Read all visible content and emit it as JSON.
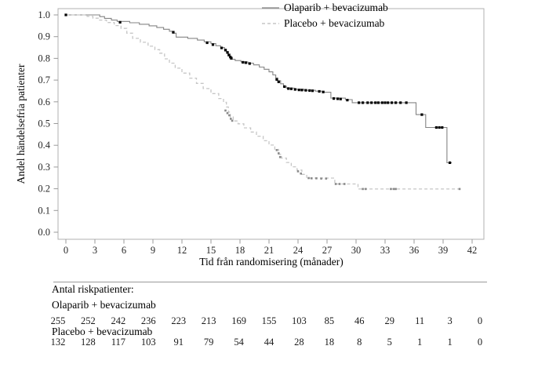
{
  "chart_data": {
    "type": "line",
    "subtype": "kaplan-meier-step",
    "title": "",
    "xlabel": "Tid från randomisering (månader)",
    "ylabel": "Andel händelsefria patienter",
    "xlim": [
      0,
      42
    ],
    "ylim": [
      0.0,
      1.0
    ],
    "x_ticks": [
      0,
      3,
      6,
      9,
      12,
      15,
      18,
      21,
      24,
      27,
      30,
      33,
      36,
      39,
      42
    ],
    "y_ticks": [
      0.0,
      0.1,
      0.2,
      0.3,
      0.4,
      0.5,
      0.6,
      0.7,
      0.8,
      0.9,
      1.0
    ],
    "grid": false,
    "legend_position": "top-center",
    "colors": {
      "olaparib_line": "#848484",
      "olaparib_censor": "#000000",
      "placebo_line": "#c6c6c6",
      "placebo_censor": "#8a8a8a",
      "axis_border": "#b2b2b2",
      "tick_mark": "#9a9a9a",
      "rule_line": "#9a9a9a"
    },
    "series": [
      {
        "name": "Olaparib + bevacizumab",
        "style": "solid",
        "steps": [
          [
            0,
            1.0
          ],
          [
            3.5,
            0.992
          ],
          [
            4.0,
            0.984
          ],
          [
            4.7,
            0.976
          ],
          [
            5.3,
            0.97
          ],
          [
            6.6,
            0.964
          ],
          [
            7.6,
            0.957
          ],
          [
            8.6,
            0.95
          ],
          [
            9.4,
            0.942
          ],
          [
            10.1,
            0.934
          ],
          [
            10.7,
            0.925
          ],
          [
            11.2,
            0.916
          ],
          [
            11.4,
            0.898
          ],
          [
            12.6,
            0.892
          ],
          [
            13.6,
            0.884
          ],
          [
            14.3,
            0.876
          ],
          [
            15.0,
            0.868
          ],
          [
            15.5,
            0.858
          ],
          [
            16.0,
            0.85
          ],
          [
            16.4,
            0.842
          ],
          [
            16.6,
            0.832
          ],
          [
            16.8,
            0.82
          ],
          [
            17.0,
            0.806
          ],
          [
            17.2,
            0.796
          ],
          [
            17.5,
            0.79
          ],
          [
            18.1,
            0.784
          ],
          [
            18.8,
            0.778
          ],
          [
            19.4,
            0.77
          ],
          [
            20.0,
            0.76
          ],
          [
            20.5,
            0.75
          ],
          [
            21.0,
            0.738
          ],
          [
            21.4,
            0.724
          ],
          [
            21.7,
            0.71
          ],
          [
            21.9,
            0.697
          ],
          [
            22.2,
            0.683
          ],
          [
            22.5,
            0.672
          ],
          [
            22.8,
            0.663
          ],
          [
            23.6,
            0.658
          ],
          [
            24.6,
            0.653
          ],
          [
            25.8,
            0.649
          ],
          [
            26.7,
            0.644
          ],
          [
            27.4,
            0.617
          ],
          [
            28.9,
            0.61
          ],
          [
            29.6,
            0.596
          ],
          [
            36.2,
            0.541
          ],
          [
            37.2,
            0.482
          ],
          [
            39.4,
            0.32
          ],
          [
            39.9,
            0.32
          ]
        ],
        "censors": [
          [
            0,
            1.0
          ],
          [
            5.6,
            0.966
          ],
          [
            11.1,
            0.92
          ],
          [
            14.6,
            0.872
          ],
          [
            15.2,
            0.863
          ],
          [
            16.1,
            0.848
          ],
          [
            16.5,
            0.838
          ],
          [
            16.7,
            0.827
          ],
          [
            16.85,
            0.815
          ],
          [
            17.0,
            0.806
          ],
          [
            17.1,
            0.8
          ],
          [
            18.3,
            0.782
          ],
          [
            18.6,
            0.78
          ],
          [
            19.0,
            0.776
          ],
          [
            21.8,
            0.703
          ],
          [
            22.0,
            0.692
          ],
          [
            22.6,
            0.67
          ],
          [
            23.0,
            0.661
          ],
          [
            23.3,
            0.66
          ],
          [
            23.7,
            0.657
          ],
          [
            24.1,
            0.655
          ],
          [
            24.4,
            0.654
          ],
          [
            24.8,
            0.653
          ],
          [
            25.2,
            0.652
          ],
          [
            25.5,
            0.651
          ],
          [
            26.2,
            0.648
          ],
          [
            26.6,
            0.645
          ],
          [
            27.7,
            0.615
          ],
          [
            28.1,
            0.614
          ],
          [
            28.4,
            0.613
          ],
          [
            29.1,
            0.608
          ],
          [
            30.3,
            0.596
          ],
          [
            30.7,
            0.596
          ],
          [
            31.2,
            0.596
          ],
          [
            31.6,
            0.596
          ],
          [
            32.0,
            0.596
          ],
          [
            32.3,
            0.596
          ],
          [
            32.7,
            0.596
          ],
          [
            33.0,
            0.596
          ],
          [
            33.3,
            0.596
          ],
          [
            33.7,
            0.596
          ],
          [
            34.1,
            0.596
          ],
          [
            34.6,
            0.596
          ],
          [
            35.2,
            0.596
          ],
          [
            36.8,
            0.541
          ],
          [
            38.3,
            0.482
          ],
          [
            38.6,
            0.482
          ],
          [
            38.9,
            0.482
          ],
          [
            39.7,
            0.32
          ]
        ]
      },
      {
        "name": "Placebo + bevacizumab",
        "style": "dashed",
        "steps": [
          [
            0,
            1.0
          ],
          [
            2.2,
            0.993
          ],
          [
            2.8,
            0.985
          ],
          [
            3.4,
            0.976
          ],
          [
            4.2,
            0.965
          ],
          [
            5.0,
            0.951
          ],
          [
            5.7,
            0.938
          ],
          [
            6.3,
            0.916
          ],
          [
            6.9,
            0.892
          ],
          [
            7.7,
            0.874
          ],
          [
            8.5,
            0.856
          ],
          [
            9.2,
            0.84
          ],
          [
            9.7,
            0.824
          ],
          [
            10.2,
            0.798
          ],
          [
            10.7,
            0.778
          ],
          [
            11.3,
            0.755
          ],
          [
            12.0,
            0.732
          ],
          [
            12.8,
            0.709
          ],
          [
            13.5,
            0.685
          ],
          [
            14.2,
            0.661
          ],
          [
            15.0,
            0.638
          ],
          [
            15.8,
            0.615
          ],
          [
            16.3,
            0.598
          ],
          [
            16.6,
            0.576
          ],
          [
            16.8,
            0.553
          ],
          [
            17.0,
            0.53
          ],
          [
            17.3,
            0.512
          ],
          [
            17.8,
            0.499
          ],
          [
            18.4,
            0.48
          ],
          [
            19.1,
            0.461
          ],
          [
            19.7,
            0.442
          ],
          [
            20.4,
            0.421
          ],
          [
            21.0,
            0.401
          ],
          [
            21.6,
            0.381
          ],
          [
            22.0,
            0.359
          ],
          [
            22.3,
            0.341
          ],
          [
            22.8,
            0.321
          ],
          [
            23.3,
            0.301
          ],
          [
            23.9,
            0.286
          ],
          [
            24.4,
            0.266
          ],
          [
            24.9,
            0.249
          ],
          [
            27.8,
            0.222
          ],
          [
            30.2,
            0.199
          ],
          [
            40.8,
            0.199
          ]
        ],
        "censors": [
          [
            16.5,
            0.56
          ],
          [
            16.7,
            0.548
          ],
          [
            16.9,
            0.538
          ],
          [
            17.05,
            0.522
          ],
          [
            17.2,
            0.513
          ],
          [
            21.8,
            0.378
          ],
          [
            22.0,
            0.363
          ],
          [
            22.15,
            0.346
          ],
          [
            24.0,
            0.28
          ],
          [
            24.3,
            0.27
          ],
          [
            25.1,
            0.249
          ],
          [
            25.4,
            0.248
          ],
          [
            25.9,
            0.248
          ],
          [
            26.4,
            0.247
          ],
          [
            26.9,
            0.247
          ],
          [
            27.9,
            0.222
          ],
          [
            28.3,
            0.222
          ],
          [
            28.8,
            0.222
          ],
          [
            30.7,
            0.199
          ],
          [
            31.0,
            0.199
          ],
          [
            33.6,
            0.199
          ],
          [
            33.9,
            0.199
          ],
          [
            34.1,
            0.199
          ],
          [
            40.7,
            0.199
          ]
        ]
      }
    ],
    "risk_table": {
      "title": "Antal riskpatienter:",
      "months": [
        0,
        3,
        6,
        9,
        12,
        15,
        18,
        21,
        24,
        27,
        30,
        33,
        36,
        39,
        42
      ],
      "rows": [
        {
          "label": "Olaparib + bevacizumab",
          "values": [
            255,
            252,
            242,
            236,
            223,
            213,
            169,
            155,
            103,
            85,
            46,
            29,
            11,
            3,
            0
          ]
        },
        {
          "label": "Placebo + bevacizumab",
          "values": [
            132,
            128,
            117,
            103,
            91,
            79,
            54,
            44,
            28,
            18,
            8,
            5,
            1,
            1,
            0
          ]
        }
      ]
    }
  }
}
